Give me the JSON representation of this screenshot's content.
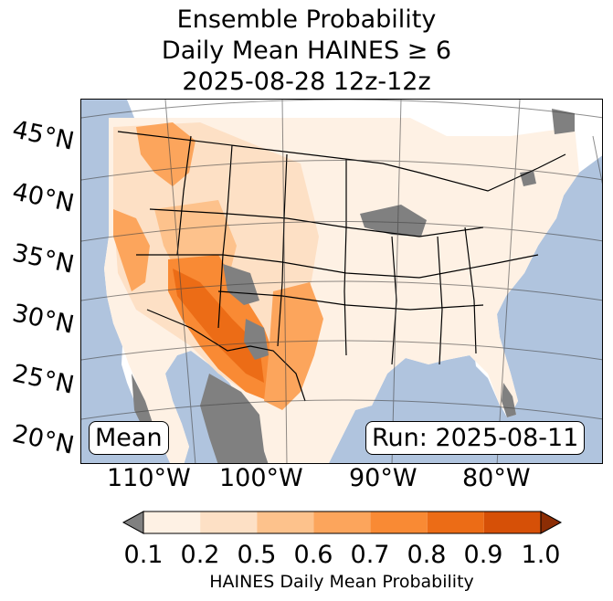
{
  "title": {
    "line1": "Ensemble Probability",
    "line2": "Daily Mean HAINES ≥ 6",
    "line3": "2025-08-28 12z-12z"
  },
  "map": {
    "latitude_labels": [
      "45°N",
      "40°N",
      "35°N",
      "30°N",
      "25°N",
      "20°N"
    ],
    "longitude_labels": [
      "110°W",
      "100°W",
      "90°W",
      "80°W"
    ],
    "mean_label": "Mean",
    "run_label": "Run: 2025-08-11",
    "colors": {
      "ocean": "#b0c4de",
      "land": "#ffffff",
      "missing": "#808080",
      "lakes": "#b0c4de"
    }
  },
  "colorbar": {
    "ticks": [
      "0.1",
      "0.2",
      "0.5",
      "0.6",
      "0.7",
      "0.8",
      "0.9",
      "1.0"
    ],
    "colors": [
      "#fef1e4",
      "#fde0c5",
      "#fdc28c",
      "#fca55c",
      "#f98a34",
      "#ec6c16",
      "#d65007"
    ],
    "under_color": "#808080",
    "over_color": "#8c2d04",
    "label": "HAINES Daily Mean Probability"
  }
}
